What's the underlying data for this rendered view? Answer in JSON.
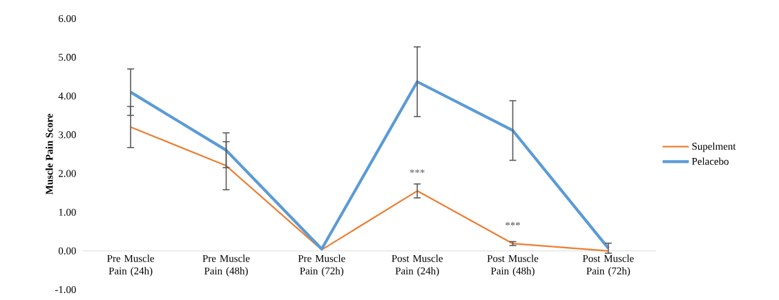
{
  "chart_data": {
    "type": "line",
    "ylabel": "Muscle Pain Score",
    "categories": [
      "Pre Muscle Pain (24h)",
      "Pre Muscle Pain (48h)",
      "Pre Muscle Pain (72h)",
      "Post Muscle Pain (24h)",
      "Post Muscle Pain (48h)",
      "Post Muscle Pain (72h)"
    ],
    "series": [
      {
        "name": "Supelment",
        "color": "#ed7d31",
        "values": [
          3.2,
          2.2,
          0.03,
          1.55,
          0.19,
          0.0
        ],
        "errors": [
          0.53,
          0.62,
          null,
          0.18,
          0.05,
          null
        ]
      },
      {
        "name": "Pelacebo",
        "color": "#5b9bd5",
        "values": [
          4.1,
          2.6,
          0.05,
          4.37,
          3.11,
          0.07
        ],
        "errors": [
          0.6,
          0.45,
          null,
          0.9,
          0.77,
          0.13
        ]
      }
    ],
    "ylim": [
      -1,
      6
    ],
    "yticks": [
      {
        "value": -1,
        "label": "-1.00"
      },
      {
        "value": 0,
        "label": "0.00"
      },
      {
        "value": 1,
        "label": "1.00"
      },
      {
        "value": 2,
        "label": "2.00"
      },
      {
        "value": 3,
        "label": "3.00"
      },
      {
        "value": 4,
        "label": "4.00"
      },
      {
        "value": 5,
        "label": "5.00"
      },
      {
        "value": 6,
        "label": "6.00"
      }
    ],
    "legend": "right",
    "annotations": [
      {
        "text": "***",
        "x": "Post Muscle Pain (24h)",
        "y": 1.55
      },
      {
        "text": "***",
        "x": "Post Muscle Pain (48h)",
        "y": 0.19
      }
    ]
  }
}
